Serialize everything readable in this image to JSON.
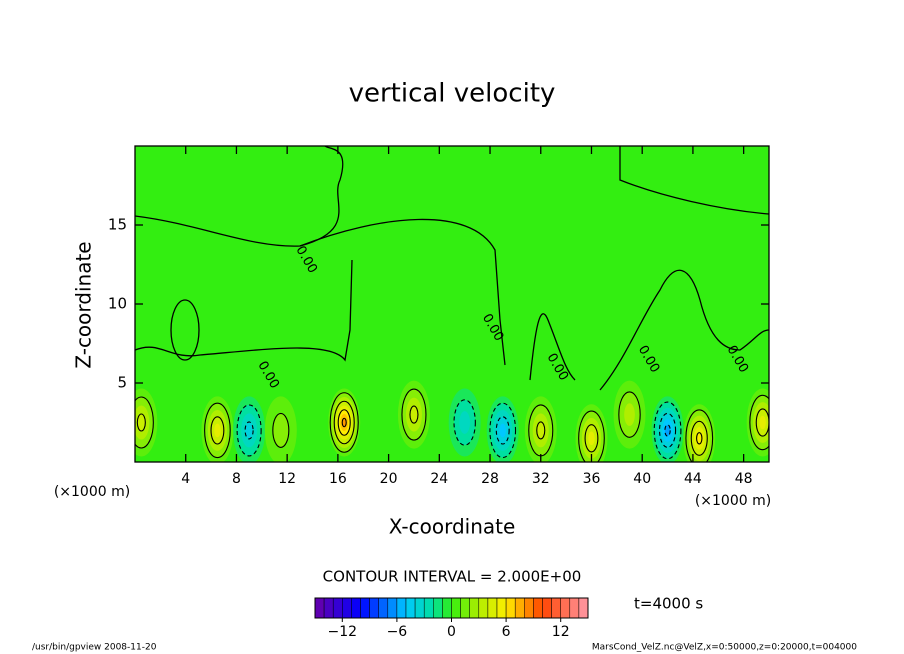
{
  "chart_data": {
    "type": "contour",
    "title": "vertical velocity",
    "x_label": "X-coordinate",
    "y_label": "Z-coordinate",
    "x_unit": "(×1000 m)",
    "xlim": [
      0,
      50
    ],
    "xticks": [
      4,
      8,
      12,
      16,
      20,
      24,
      28,
      32,
      36,
      40,
      44,
      48
    ],
    "ylim": [
      0,
      20
    ],
    "yticks": [
      5,
      10,
      15
    ],
    "contour_interval_text": "CONTOUR INTERVAL = 2.000E+00",
    "time_text": "t=4000 s",
    "clim": [
      -15,
      15
    ],
    "color_step": 1,
    "colormap": [
      {
        "value": -15,
        "color": "#6a00a8"
      },
      {
        "value": -10,
        "color": "#0000ff"
      },
      {
        "value": -5,
        "color": "#00c8ff"
      },
      {
        "value": -2,
        "color": "#00e0a0"
      },
      {
        "value": 0,
        "color": "#33ee11"
      },
      {
        "value": 3,
        "color": "#b0ee00"
      },
      {
        "value": 6,
        "color": "#ffee00"
      },
      {
        "value": 10,
        "color": "#ff4400"
      },
      {
        "value": 15,
        "color": "#ff9aa8"
      }
    ],
    "cticks": [
      {
        "value": -12,
        "label": "−12"
      },
      {
        "value": -6,
        "label": "−6"
      },
      0,
      6,
      12
    ],
    "extrema": [
      {
        "x": 0.5,
        "z": 2.5,
        "w": 4
      },
      {
        "x": 6.5,
        "z": 2,
        "w": 5
      },
      {
        "x": 9,
        "z": 2,
        "w": -4
      },
      {
        "x": 11.5,
        "z": 2,
        "w": 2
      },
      {
        "x": 16.5,
        "z": 2.5,
        "w": 8
      },
      {
        "x": 22,
        "z": 3,
        "w": 4
      },
      {
        "x": 26,
        "z": 2.5,
        "w": -3
      },
      {
        "x": 29,
        "z": 2,
        "w": -5
      },
      {
        "x": 32,
        "z": 2,
        "w": 4
      },
      {
        "x": 36,
        "z": 1.5,
        "w": 5
      },
      {
        "x": 39,
        "z": 3,
        "w": 3
      },
      {
        "x": 42,
        "z": 2,
        "w": -6
      },
      {
        "x": 44.5,
        "z": 1.5,
        "w": 6
      },
      {
        "x": 49.5,
        "z": 2.5,
        "w": 5
      }
    ],
    "contour_labels": [
      {
        "x": 13.5,
        "z": 12.8,
        "value": 0,
        "label": "0.00"
      },
      {
        "x": 28.2,
        "z": 8.5,
        "value": 0,
        "label": "0.00"
      },
      {
        "x": 33.3,
        "z": 6,
        "value": 0,
        "label": "0.00"
      },
      {
        "x": 40.5,
        "z": 6.5,
        "value": 0,
        "label": "0.00"
      },
      {
        "x": 47.5,
        "z": 6.5,
        "value": 0,
        "label": "0.00"
      },
      {
        "x": 10.5,
        "z": 5.5,
        "value": 0,
        "label": "0.00"
      }
    ],
    "footer_left": "/usr/bin/gpview  2008-11-20",
    "footer_right": "MarsCond_VelZ.nc@VelZ,x=0:50000,z=0:20000,t=004000"
  }
}
